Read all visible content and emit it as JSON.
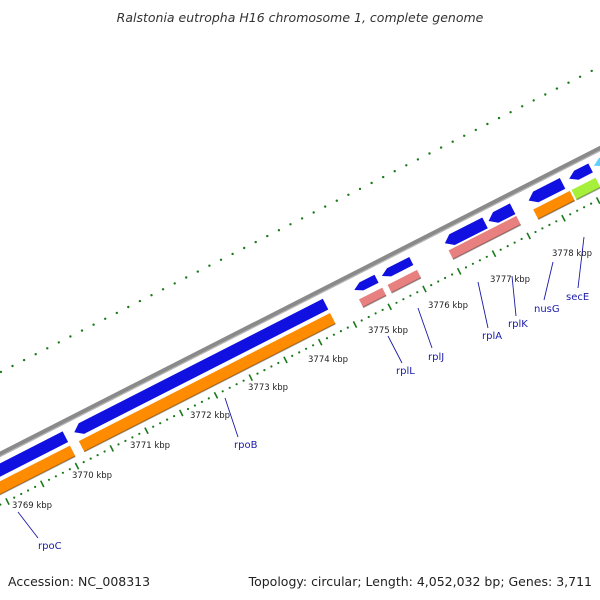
{
  "title": "Ralstonia eutropha H16 chromosome 1, complete genome",
  "footer": {
    "accession_label": "Accession:",
    "accession": "NC_008313",
    "topology_label": "Topology:",
    "topology": "circular",
    "length_label": "Length:",
    "length": "4,052,032 bp",
    "genes_label": "Genes:",
    "genes": "3,711"
  },
  "colors": {
    "backbone": "#8a8a8a",
    "cds_forward": "#1010e0",
    "cds_reverse": "#ff8c00",
    "rna_feature": "#e88080",
    "highlight_gene": "#a6f03c",
    "small_feature": "#5fd0ff",
    "tick": "#1a7a1a",
    "gene_label": "#1a1aa8"
  },
  "scale_ticks": [
    {
      "label": "3769 kbp"
    },
    {
      "label": "3770 kbp"
    },
    {
      "label": "3771 kbp"
    },
    {
      "label": "3772 kbp"
    },
    {
      "label": "3773 kbp"
    },
    {
      "label": "3774 kbp"
    },
    {
      "label": "3775 kbp"
    },
    {
      "label": "3776 kbp"
    },
    {
      "label": "3777 kbp"
    },
    {
      "label": "3778 kbp"
    }
  ],
  "gene_labels": [
    {
      "name": "rpoC"
    },
    {
      "name": "rpoB"
    },
    {
      "name": "rplL"
    },
    {
      "name": "rplJ"
    },
    {
      "name": "rplA"
    },
    {
      "name": "rplK"
    },
    {
      "name": "nusG"
    },
    {
      "name": "secE"
    }
  ]
}
